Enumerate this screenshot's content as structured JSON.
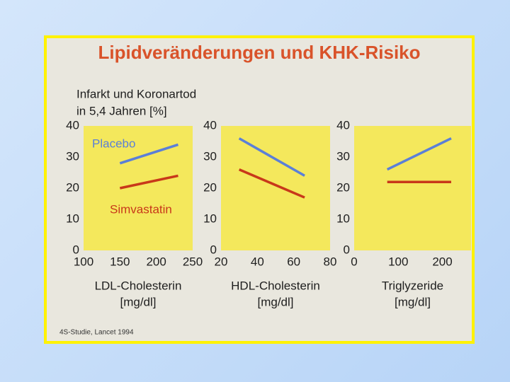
{
  "title": "Lipidveränderungen und KHK-Risiko",
  "ylabel": [
    "Infarkt und Koronartod",
    "in 5,4 Jahren [%]"
  ],
  "footnote": "4S-Studie, Lancet 1994",
  "chart_data": [
    {
      "type": "line",
      "xlabel": "LDL-Cholesterin",
      "xunit": "[mg/dl]",
      "x": [
        150,
        230
      ],
      "xlim": [
        100,
        250
      ],
      "xticks": [
        100,
        150,
        200,
        250
      ],
      "ylim": [
        0,
        40
      ],
      "yticks": [
        0,
        10,
        20,
        30,
        40
      ],
      "grid": false,
      "series": [
        {
          "name": "Placebo",
          "color": "#5b7fd8",
          "values": [
            28,
            34
          ]
        },
        {
          "name": "Simvastatin",
          "color": "#c8381a",
          "values": [
            20,
            24
          ]
        }
      ]
    },
    {
      "type": "line",
      "xlabel": "HDL-Cholesterin",
      "xunit": "[mg/dl]",
      "x": [
        30,
        66
      ],
      "xlim": [
        20,
        80
      ],
      "xticks": [
        20,
        40,
        60,
        80
      ],
      "ylim": [
        0,
        40
      ],
      "yticks": [
        0,
        10,
        20,
        30,
        40
      ],
      "grid": false,
      "series": [
        {
          "color": "#5b7fd8",
          "values": [
            36,
            24
          ]
        },
        {
          "color": "#c8381a",
          "values": [
            26,
            17
          ]
        }
      ]
    },
    {
      "type": "line",
      "xlabel": "Triglyzeride",
      "xunit": "[mg/dl]",
      "x": [
        75,
        220
      ],
      "xlim": [
        0,
        265
      ],
      "xticks": [
        0,
        100,
        200
      ],
      "ylim": [
        0,
        40
      ],
      "yticks": [
        0,
        10,
        20,
        30,
        40
      ],
      "grid": false,
      "series": [
        {
          "color": "#5b7fd8",
          "values": [
            26,
            36
          ]
        },
        {
          "color": "#c8381a",
          "values": [
            22,
            22
          ]
        }
      ]
    }
  ]
}
